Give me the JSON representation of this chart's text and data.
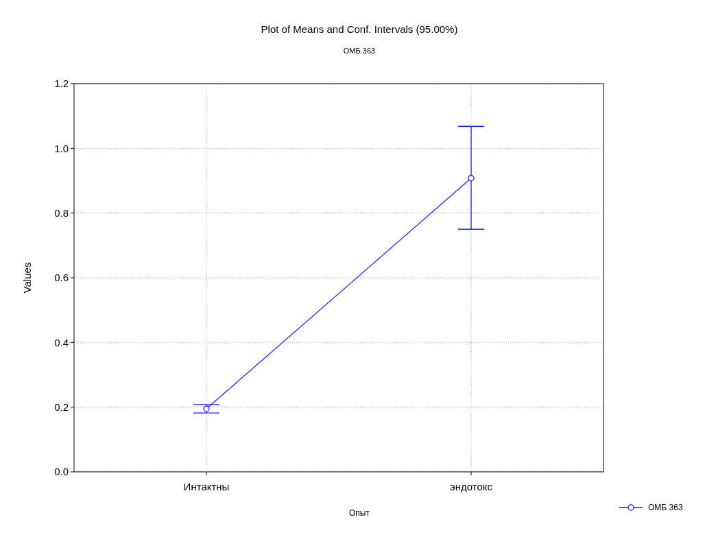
{
  "chart_data": {
    "type": "line",
    "title": "Plot of Means and Conf. Intervals (95.00%)",
    "subtitle": "ОМБ 363",
    "xlabel": "Опыт",
    "ylabel": "Values",
    "categories": [
      "Интактны",
      "эндотокс"
    ],
    "series": [
      {
        "name": "ОМБ 363",
        "color": "#1a1aff",
        "values": [
          0.195,
          0.908
        ],
        "errors": [
          [
            0.182,
            0.208
          ],
          [
            0.75,
            1.068
          ]
        ]
      }
    ],
    "ylim": [
      0,
      1.2
    ],
    "yticks": [
      {
        "value": 0,
        "label": "0.0"
      },
      0.2,
      0.4,
      0.6,
      0.8,
      {
        "value": 1,
        "label": "1.0"
      },
      1.2
    ],
    "grid": true,
    "legend": "bottom right",
    "marker": "circle"
  }
}
